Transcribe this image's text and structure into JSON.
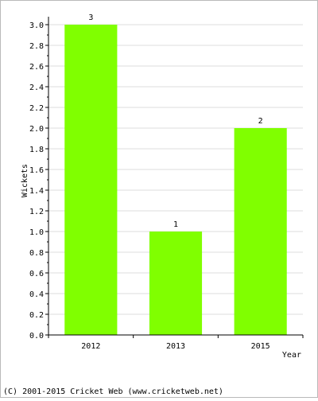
{
  "chart_data": {
    "type": "bar",
    "categories": [
      "2012",
      "2013",
      "2015"
    ],
    "values": [
      3,
      1,
      2
    ],
    "data_labels": [
      "3",
      "1",
      "2"
    ],
    "xlabel": "Year",
    "ylabel": "Wickets",
    "ylim": [
      0,
      3.0
    ],
    "yticks": [
      "0.0",
      "0.2",
      "0.4",
      "0.6",
      "0.8",
      "1.0",
      "1.2",
      "1.4",
      "1.6",
      "1.8",
      "2.0",
      "2.2",
      "2.4",
      "2.6",
      "2.8",
      "3.0"
    ],
    "grid": true,
    "legend": "none",
    "colors": {
      "bar": "#80ff00",
      "grid": "#dcdcdc",
      "axis": "#000000"
    }
  },
  "footer": {
    "copyright": "(C) 2001-2015 Cricket Web (www.cricketweb.net)"
  }
}
